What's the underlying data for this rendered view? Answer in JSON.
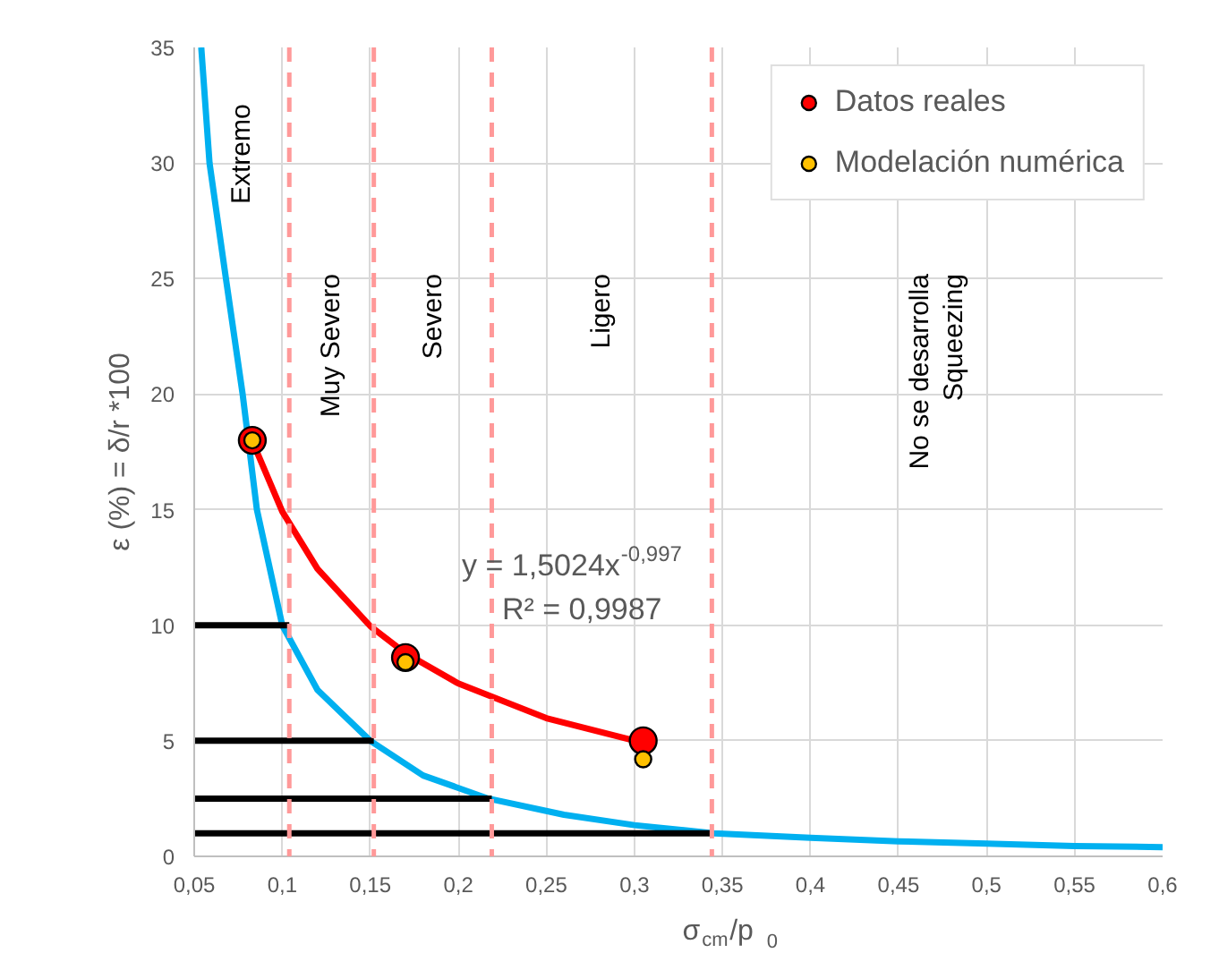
{
  "chart_data": {
    "type": "scatter",
    "xlabel": "σ$_{cm}$/p$_{0}$",
    "ylabel": "ε (%) = δ/r *100",
    "xlim": [
      0.05,
      0.6
    ],
    "ylim": [
      0,
      35
    ],
    "xticks": [
      {
        "value": 0.05,
        "label": "0,05"
      },
      {
        "value": 0.1,
        "label": "0,1"
      },
      {
        "value": 0.15,
        "label": "0,15"
      },
      {
        "value": 0.2,
        "label": "0,2"
      },
      {
        "value": 0.25,
        "label": "0,25"
      },
      {
        "value": 0.3,
        "label": "0,3"
      },
      {
        "value": 0.35,
        "label": "0,35"
      },
      {
        "value": 0.4,
        "label": "0,4"
      },
      {
        "value": 0.45,
        "label": "0,45"
      },
      {
        "value": 0.5,
        "label": "0,5"
      },
      {
        "value": 0.55,
        "label": "0,55"
      },
      {
        "value": 0.6,
        "label": "0,6"
      }
    ],
    "yticks": [
      0,
      5,
      10,
      15,
      20,
      25,
      30,
      35
    ],
    "grid": true,
    "legend": "top right",
    "series": [
      {
        "type": "line",
        "color": "#00b0f0",
        "x": [
          0.054,
          0.0587,
          0.068,
          0.0775,
          0.0856,
          0.1,
          0.12,
          0.15,
          0.18,
          0.217,
          0.26,
          0.3,
          0.345,
          0.4,
          0.45,
          0.5,
          0.55,
          0.6
        ],
        "values": [
          35,
          30,
          25,
          20,
          15,
          10,
          7.2,
          5,
          3.5,
          2.5,
          1.8,
          1.35,
          1,
          0.8,
          0.65,
          0.55,
          0.45,
          0.4
        ],
        "line_style": "solid",
        "marker": "none"
      },
      {
        "type": "line",
        "color": "#000000",
        "x": [
          0.05,
          0.104
        ],
        "values": [
          10,
          10
        ],
        "line_style": "solid",
        "marker": "none"
      },
      {
        "type": "line",
        "color": "#000000",
        "x": [
          0.05,
          0.152
        ],
        "values": [
          5,
          5
        ],
        "line_style": "solid",
        "marker": "none"
      },
      {
        "type": "line",
        "color": "#000000",
        "x": [
          0.05,
          0.219
        ],
        "values": [
          2.5,
          2.5
        ],
        "line_style": "solid",
        "marker": "none"
      },
      {
        "type": "line",
        "color": "#000000",
        "x": [
          0.05,
          0.344
        ],
        "values": [
          1,
          1
        ],
        "line_style": "solid",
        "marker": "none"
      },
      {
        "type": "line",
        "color": "#ff0000",
        "x": [
          0.083,
          0.1,
          0.12,
          0.15,
          0.17,
          0.2,
          0.25,
          0.305
        ],
        "values": [
          17.97,
          14.92,
          12.44,
          9.96,
          8.79,
          7.48,
          5.98,
          4.91
        ],
        "line_style": "solid",
        "marker": "none"
      },
      {
        "name": "Datos reales",
        "color": "#ff0000",
        "marker": "circle",
        "x": [
          0.083,
          0.17,
          0.305
        ],
        "values": [
          18,
          8.6,
          5.0
        ]
      },
      {
        "name": "Modelación numérica",
        "color": "#ffc000",
        "marker": "circle",
        "x": [
          0.083,
          0.17,
          0.305
        ],
        "values": [
          18,
          8.4,
          4.2
        ]
      }
    ],
    "ref_lines": [
      {
        "axis": "x",
        "value": 0.104,
        "color": "#ff9999",
        "line_style": "dashed"
      },
      {
        "axis": "x",
        "value": 0.152,
        "color": "#ff9999",
        "line_style": "dashed"
      },
      {
        "axis": "x",
        "value": 0.219,
        "color": "#ff9999",
        "line_style": "dashed"
      },
      {
        "axis": "x",
        "value": 0.344,
        "color": "#ff9999",
        "line_style": "dashed"
      }
    ],
    "annotations": [
      "Extremo",
      "Muy Severo",
      "Severo",
      "Ligero",
      "No se desarrolla\nSqueezing",
      "y = 1,5024x$^{-0,997}$",
      "R² = 0,9987"
    ]
  }
}
